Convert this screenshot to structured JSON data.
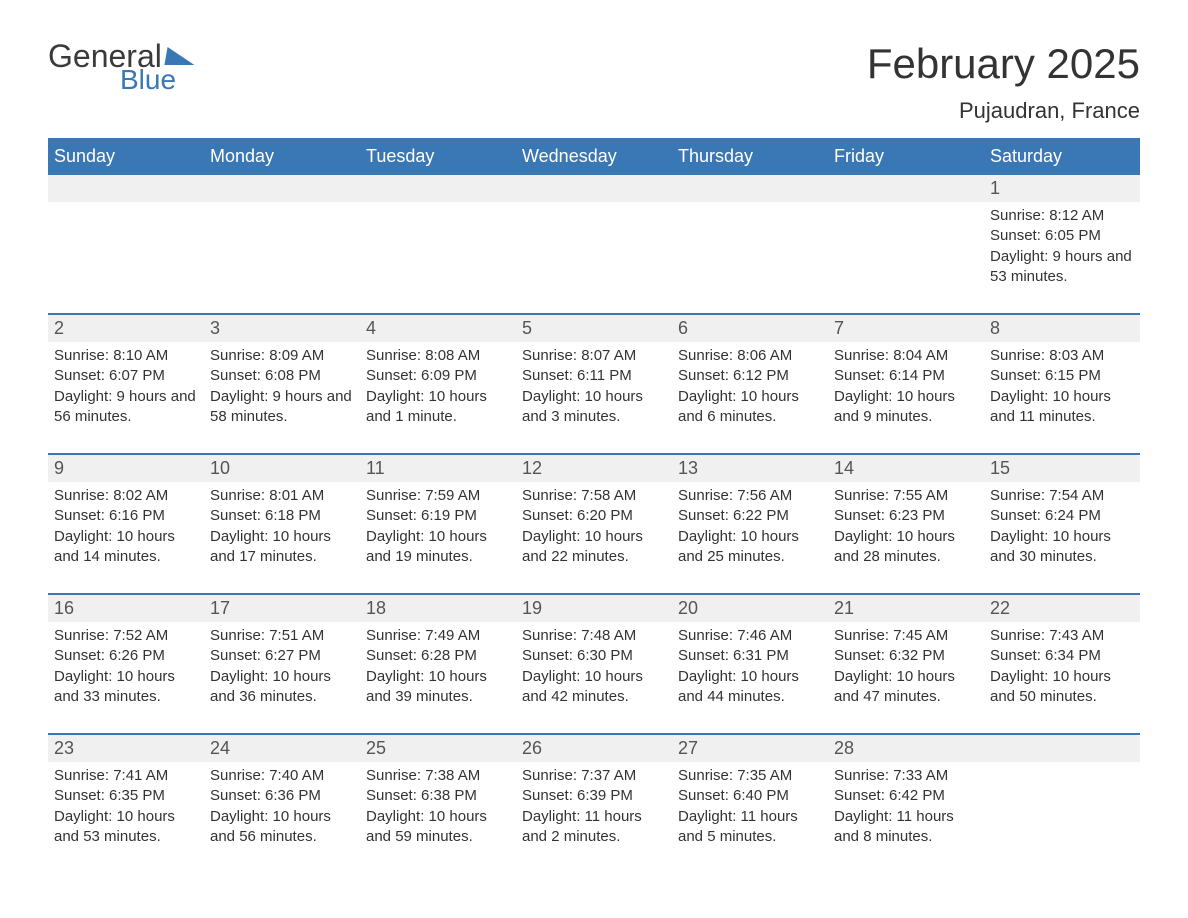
{
  "logo": {
    "text1": "General",
    "text2": "Blue"
  },
  "colors": {
    "brand": "#3a77b5",
    "header_bg": "#3a77b5",
    "header_text": "#ffffff",
    "daynum_bg": "#f0f0f0",
    "text": "#333333",
    "rule": "#3a77b5"
  },
  "title": "February 2025",
  "location": "Pujaudran, France",
  "weekdays": [
    "Sunday",
    "Monday",
    "Tuesday",
    "Wednesday",
    "Thursday",
    "Friday",
    "Saturday"
  ],
  "weeks": [
    [
      null,
      null,
      null,
      null,
      null,
      null,
      {
        "n": "1",
        "sunrise": "8:12 AM",
        "sunset": "6:05 PM",
        "daylight": "9 hours and 53 minutes."
      }
    ],
    [
      {
        "n": "2",
        "sunrise": "8:10 AM",
        "sunset": "6:07 PM",
        "daylight": "9 hours and 56 minutes."
      },
      {
        "n": "3",
        "sunrise": "8:09 AM",
        "sunset": "6:08 PM",
        "daylight": "9 hours and 58 minutes."
      },
      {
        "n": "4",
        "sunrise": "8:08 AM",
        "sunset": "6:09 PM",
        "daylight": "10 hours and 1 minute."
      },
      {
        "n": "5",
        "sunrise": "8:07 AM",
        "sunset": "6:11 PM",
        "daylight": "10 hours and 3 minutes."
      },
      {
        "n": "6",
        "sunrise": "8:06 AM",
        "sunset": "6:12 PM",
        "daylight": "10 hours and 6 minutes."
      },
      {
        "n": "7",
        "sunrise": "8:04 AM",
        "sunset": "6:14 PM",
        "daylight": "10 hours and 9 minutes."
      },
      {
        "n": "8",
        "sunrise": "8:03 AM",
        "sunset": "6:15 PM",
        "daylight": "10 hours and 11 minutes."
      }
    ],
    [
      {
        "n": "9",
        "sunrise": "8:02 AM",
        "sunset": "6:16 PM",
        "daylight": "10 hours and 14 minutes."
      },
      {
        "n": "10",
        "sunrise": "8:01 AM",
        "sunset": "6:18 PM",
        "daylight": "10 hours and 17 minutes."
      },
      {
        "n": "11",
        "sunrise": "7:59 AM",
        "sunset": "6:19 PM",
        "daylight": "10 hours and 19 minutes."
      },
      {
        "n": "12",
        "sunrise": "7:58 AM",
        "sunset": "6:20 PM",
        "daylight": "10 hours and 22 minutes."
      },
      {
        "n": "13",
        "sunrise": "7:56 AM",
        "sunset": "6:22 PM",
        "daylight": "10 hours and 25 minutes."
      },
      {
        "n": "14",
        "sunrise": "7:55 AM",
        "sunset": "6:23 PM",
        "daylight": "10 hours and 28 minutes."
      },
      {
        "n": "15",
        "sunrise": "7:54 AM",
        "sunset": "6:24 PM",
        "daylight": "10 hours and 30 minutes."
      }
    ],
    [
      {
        "n": "16",
        "sunrise": "7:52 AM",
        "sunset": "6:26 PM",
        "daylight": "10 hours and 33 minutes."
      },
      {
        "n": "17",
        "sunrise": "7:51 AM",
        "sunset": "6:27 PM",
        "daylight": "10 hours and 36 minutes."
      },
      {
        "n": "18",
        "sunrise": "7:49 AM",
        "sunset": "6:28 PM",
        "daylight": "10 hours and 39 minutes."
      },
      {
        "n": "19",
        "sunrise": "7:48 AM",
        "sunset": "6:30 PM",
        "daylight": "10 hours and 42 minutes."
      },
      {
        "n": "20",
        "sunrise": "7:46 AM",
        "sunset": "6:31 PM",
        "daylight": "10 hours and 44 minutes."
      },
      {
        "n": "21",
        "sunrise": "7:45 AM",
        "sunset": "6:32 PM",
        "daylight": "10 hours and 47 minutes."
      },
      {
        "n": "22",
        "sunrise": "7:43 AM",
        "sunset": "6:34 PM",
        "daylight": "10 hours and 50 minutes."
      }
    ],
    [
      {
        "n": "23",
        "sunrise": "7:41 AM",
        "sunset": "6:35 PM",
        "daylight": "10 hours and 53 minutes."
      },
      {
        "n": "24",
        "sunrise": "7:40 AM",
        "sunset": "6:36 PM",
        "daylight": "10 hours and 56 minutes."
      },
      {
        "n": "25",
        "sunrise": "7:38 AM",
        "sunset": "6:38 PM",
        "daylight": "10 hours and 59 minutes."
      },
      {
        "n": "26",
        "sunrise": "7:37 AM",
        "sunset": "6:39 PM",
        "daylight": "11 hours and 2 minutes."
      },
      {
        "n": "27",
        "sunrise": "7:35 AM",
        "sunset": "6:40 PM",
        "daylight": "11 hours and 5 minutes."
      },
      {
        "n": "28",
        "sunrise": "7:33 AM",
        "sunset": "6:42 PM",
        "daylight": "11 hours and 8 minutes."
      },
      null
    ]
  ],
  "labels": {
    "sunrise": "Sunrise: ",
    "sunset": "Sunset: ",
    "daylight": "Daylight: "
  }
}
